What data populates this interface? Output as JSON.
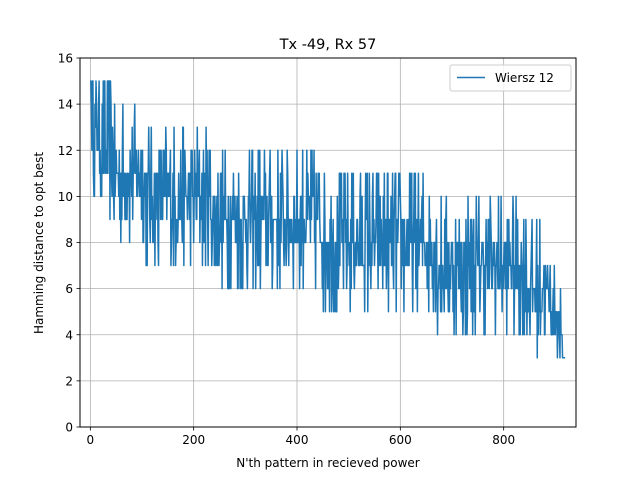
{
  "chart_data": {
    "type": "line",
    "title": "Tx -49, Rx 57",
    "xlabel": "N'th pattern in recieved power",
    "ylabel": "Hamming distance to opt best",
    "xlim": [
      -20,
      940
    ],
    "ylim": [
      0,
      16
    ],
    "xticks": [
      0,
      200,
      400,
      600,
      800
    ],
    "yticks": [
      0,
      2,
      4,
      6,
      8,
      10,
      12,
      14,
      16
    ],
    "grid": true,
    "legend_position": "top-right",
    "x_count": 920,
    "trend_anchors": [
      [
        0,
        15
      ],
      [
        3,
        14
      ],
      [
        10,
        13
      ],
      [
        40,
        11.6
      ],
      [
        80,
        10.7
      ],
      [
        150,
        10.1
      ],
      [
        250,
        9.4
      ],
      [
        350,
        8.9
      ],
      [
        450,
        8.5
      ],
      [
        550,
        8.0
      ],
      [
        650,
        7.6
      ],
      [
        750,
        7.1
      ],
      [
        820,
        6.7
      ],
      [
        870,
        6.3
      ],
      [
        880,
        6.0
      ],
      [
        900,
        5.2
      ],
      [
        910,
        4.0
      ],
      [
        916,
        3.0
      ],
      [
        919,
        3.0
      ]
    ],
    "noise_levels": [
      -3,
      -2,
      -1,
      -1,
      0,
      0,
      0,
      1,
      1,
      2,
      3
    ],
    "series": [
      {
        "name": "Wiersz 12",
        "color": "#1f77b4"
      }
    ]
  }
}
